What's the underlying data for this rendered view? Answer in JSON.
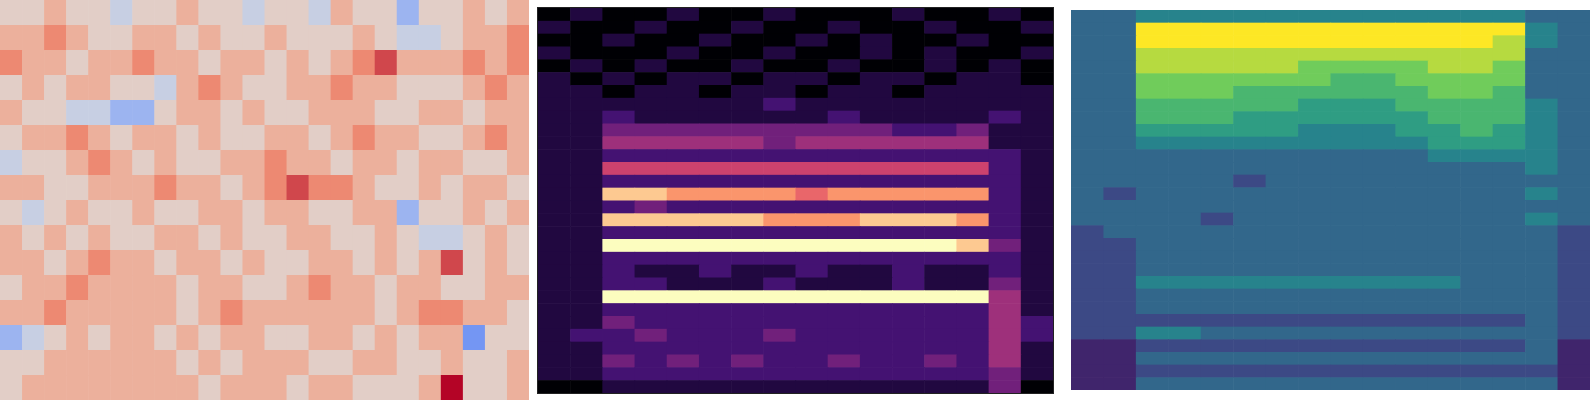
{
  "chart_data": [
    {
      "type": "heatmap",
      "color": "coolwarm",
      "tick_labels": false,
      "xlim": [
        0,
        24
      ],
      "ylim": [
        0,
        16
      ],
      "zlim": [
        0,
        9
      ],
      "cells": [
        [
          5,
          5,
          6,
          5,
          5,
          4,
          5,
          5,
          6,
          5,
          5,
          4,
          5,
          5,
          4,
          6,
          5,
          5,
          3,
          5,
          5,
          6,
          5,
          6
        ],
        [
          6,
          6,
          7,
          6,
          5,
          5,
          6,
          6,
          5,
          6,
          5,
          5,
          6,
          5,
          5,
          5,
          6,
          5,
          4,
          4,
          5,
          6,
          6,
          7
        ],
        [
          7,
          6,
          6,
          5,
          6,
          6,
          7,
          6,
          6,
          5,
          6,
          6,
          5,
          6,
          5,
          6,
          7,
          8,
          6,
          6,
          6,
          7,
          6,
          7
        ],
        [
          5,
          6,
          5,
          6,
          6,
          5,
          5,
          4,
          6,
          7,
          6,
          5,
          5,
          6,
          6,
          7,
          6,
          6,
          5,
          5,
          5,
          6,
          7,
          6
        ],
        [
          6,
          5,
          5,
          4,
          4,
          3,
          3,
          5,
          6,
          6,
          5,
          6,
          5,
          5,
          6,
          6,
          6,
          5,
          5,
          6,
          6,
          5,
          6,
          6
        ],
        [
          5,
          6,
          6,
          7,
          6,
          5,
          6,
          6,
          5,
          6,
          5,
          5,
          6,
          6,
          5,
          6,
          7,
          6,
          6,
          5,
          5,
          6,
          7,
          6
        ],
        [
          4,
          5,
          5,
          6,
          7,
          6,
          5,
          6,
          5,
          5,
          6,
          6,
          7,
          6,
          6,
          5,
          6,
          6,
          5,
          6,
          6,
          5,
          5,
          6
        ],
        [
          6,
          6,
          5,
          5,
          6,
          6,
          6,
          7,
          6,
          6,
          5,
          6,
          7,
          8,
          7,
          7,
          6,
          5,
          5,
          6,
          5,
          6,
          6,
          5
        ],
        [
          5,
          4,
          5,
          6,
          5,
          5,
          6,
          5,
          5,
          6,
          6,
          5,
          6,
          6,
          5,
          5,
          6,
          6,
          3,
          5,
          5,
          6,
          5,
          6
        ],
        [
          6,
          5,
          6,
          5,
          6,
          5,
          5,
          6,
          6,
          5,
          6,
          5,
          5,
          6,
          6,
          5,
          5,
          6,
          5,
          4,
          4,
          5,
          6,
          5
        ],
        [
          6,
          6,
          5,
          6,
          7,
          6,
          6,
          5,
          6,
          6,
          5,
          6,
          5,
          5,
          6,
          6,
          5,
          6,
          5,
          6,
          8,
          5,
          6,
          5
        ],
        [
          5,
          6,
          6,
          7,
          6,
          6,
          6,
          6,
          5,
          6,
          6,
          5,
          5,
          6,
          7,
          6,
          6,
          5,
          6,
          6,
          5,
          5,
          6,
          6
        ],
        [
          6,
          6,
          7,
          6,
          6,
          6,
          6,
          6,
          5,
          6,
          7,
          6,
          6,
          6,
          6,
          6,
          6,
          5,
          6,
          7,
          7,
          6,
          6,
          5
        ],
        [
          3,
          4,
          5,
          6,
          5,
          6,
          6,
          5,
          6,
          5,
          6,
          6,
          5,
          5,
          6,
          6,
          5,
          6,
          5,
          6,
          6,
          2,
          5,
          5
        ],
        [
          5,
          5,
          6,
          6,
          6,
          6,
          6,
          6,
          5,
          6,
          5,
          6,
          6,
          6,
          5,
          5,
          6,
          6,
          5,
          5,
          6,
          5,
          5,
          6
        ],
        [
          5,
          6,
          6,
          6,
          6,
          6,
          6,
          6,
          6,
          5,
          6,
          6,
          6,
          5,
          6,
          6,
          5,
          5,
          5,
          6,
          9,
          5,
          5,
          6
        ]
      ]
    },
    {
      "type": "heatmap",
      "color": "magma",
      "tick_labels": false,
      "xlim": [
        0,
        16
      ],
      "ylim": [
        0,
        30
      ],
      "zlim": [
        0,
        9
      ],
      "cells": [
        [
          0,
          1,
          0,
          0,
          1,
          0,
          0,
          1,
          0,
          0,
          0,
          1,
          0,
          0,
          1,
          0
        ],
        [
          1,
          0,
          0,
          1,
          0,
          0,
          1,
          0,
          0,
          1,
          0,
          0,
          1,
          0,
          0,
          1
        ],
        [
          0,
          0,
          1,
          0,
          0,
          1,
          0,
          0,
          1,
          0,
          1,
          0,
          0,
          1,
          0,
          0
        ],
        [
          1,
          0,
          0,
          0,
          1,
          0,
          0,
          1,
          0,
          0,
          1,
          0,
          1,
          0,
          0,
          1
        ],
        [
          0,
          1,
          0,
          1,
          0,
          0,
          1,
          0,
          0,
          1,
          0,
          0,
          1,
          0,
          1,
          0
        ],
        [
          1,
          0,
          1,
          0,
          1,
          1,
          0,
          1,
          1,
          0,
          1,
          1,
          0,
          1,
          1,
          0
        ],
        [
          1,
          1,
          0,
          1,
          1,
          0,
          1,
          1,
          0,
          1,
          1,
          0,
          1,
          1,
          1,
          1
        ],
        [
          1,
          1,
          1,
          1,
          1,
          1,
          1,
          2,
          1,
          1,
          1,
          1,
          1,
          1,
          1,
          1
        ],
        [
          1,
          1,
          2,
          1,
          1,
          1,
          1,
          1,
          1,
          2,
          1,
          1,
          1,
          1,
          2,
          1
        ],
        [
          1,
          1,
          3,
          3,
          3,
          3,
          3,
          3,
          3,
          3,
          3,
          2,
          2,
          3,
          1,
          1
        ],
        [
          1,
          1,
          4,
          4,
          4,
          4,
          4,
          3,
          4,
          4,
          4,
          4,
          4,
          4,
          1,
          1
        ],
        [
          1,
          1,
          2,
          2,
          2,
          2,
          2,
          2,
          2,
          2,
          2,
          2,
          2,
          2,
          2,
          1
        ],
        [
          1,
          1,
          5,
          5,
          5,
          5,
          5,
          5,
          5,
          5,
          5,
          5,
          5,
          5,
          2,
          1
        ],
        [
          1,
          1,
          2,
          2,
          2,
          2,
          2,
          2,
          2,
          2,
          2,
          2,
          2,
          2,
          2,
          1
        ],
        [
          1,
          1,
          8,
          8,
          7,
          7,
          7,
          7,
          6,
          7,
          7,
          7,
          7,
          7,
          2,
          1
        ],
        [
          1,
          1,
          2,
          3,
          2,
          2,
          2,
          2,
          2,
          2,
          2,
          2,
          2,
          2,
          2,
          1
        ],
        [
          1,
          1,
          8,
          8,
          8,
          8,
          8,
          7,
          7,
          7,
          8,
          8,
          8,
          7,
          2,
          1
        ],
        [
          1,
          1,
          2,
          2,
          2,
          2,
          2,
          2,
          2,
          2,
          2,
          2,
          2,
          2,
          2,
          1
        ],
        [
          1,
          1,
          9,
          9,
          9,
          9,
          9,
          9,
          9,
          9,
          9,
          9,
          9,
          8,
          3,
          1
        ],
        [
          1,
          1,
          2,
          2,
          2,
          2,
          2,
          2,
          2,
          2,
          2,
          2,
          2,
          2,
          2,
          1
        ],
        [
          1,
          1,
          2,
          1,
          1,
          2,
          1,
          1,
          2,
          1,
          1,
          2,
          1,
          1,
          2,
          1
        ],
        [
          1,
          1,
          2,
          2,
          1,
          1,
          1,
          2,
          1,
          1,
          1,
          2,
          1,
          1,
          3,
          1
        ],
        [
          1,
          1,
          9,
          9,
          9,
          9,
          9,
          9,
          9,
          9,
          9,
          9,
          9,
          9,
          4,
          1
        ],
        [
          1,
          1,
          2,
          2,
          2,
          2,
          2,
          2,
          2,
          2,
          2,
          2,
          2,
          2,
          4,
          1
        ],
        [
          1,
          1,
          3,
          2,
          2,
          2,
          2,
          2,
          2,
          2,
          2,
          2,
          2,
          2,
          4,
          2
        ],
        [
          1,
          2,
          2,
          3,
          2,
          2,
          2,
          3,
          2,
          2,
          2,
          2,
          2,
          2,
          4,
          2
        ],
        [
          1,
          1,
          2,
          2,
          2,
          2,
          2,
          2,
          2,
          2,
          2,
          2,
          2,
          2,
          4,
          1
        ],
        [
          1,
          1,
          3,
          2,
          3,
          2,
          3,
          2,
          2,
          3,
          2,
          2,
          3,
          2,
          4,
          1
        ],
        [
          1,
          1,
          2,
          2,
          2,
          2,
          2,
          2,
          2,
          2,
          2,
          2,
          2,
          2,
          3,
          1
        ],
        [
          0,
          0,
          1,
          1,
          1,
          1,
          1,
          1,
          1,
          1,
          1,
          1,
          1,
          1,
          3,
          0
        ]
      ]
    },
    {
      "type": "heatmap",
      "color": "viridis",
      "tick_labels": false,
      "xlim": [
        0,
        16
      ],
      "ylim": [
        0,
        30
      ],
      "zlim": [
        0,
        9
      ],
      "cells": [
        [
          3,
          3,
          4,
          4,
          4,
          4,
          4,
          4,
          4,
          4,
          4,
          4,
          4,
          4,
          3,
          3
        ],
        [
          3,
          3,
          9,
          9,
          9,
          9,
          9,
          9,
          9,
          9,
          9,
          9,
          9,
          9,
          4,
          3
        ],
        [
          3,
          3,
          9,
          9,
          9,
          9,
          9,
          9,
          9,
          9,
          9,
          9,
          9,
          8,
          4,
          3
        ],
        [
          3,
          3,
          8,
          8,
          8,
          8,
          8,
          8,
          8,
          8,
          8,
          8,
          8,
          8,
          3,
          3
        ],
        [
          3,
          3,
          8,
          8,
          8,
          8,
          8,
          7,
          7,
          7,
          7,
          8,
          8,
          7,
          3,
          3
        ],
        [
          3,
          3,
          7,
          7,
          7,
          7,
          7,
          7,
          6,
          6,
          7,
          7,
          7,
          7,
          3,
          3
        ],
        [
          3,
          3,
          7,
          7,
          7,
          6,
          6,
          6,
          6,
          6,
          6,
          7,
          7,
          6,
          3,
          3
        ],
        [
          3,
          3,
          6,
          6,
          6,
          6,
          6,
          5,
          5,
          5,
          6,
          6,
          6,
          6,
          4,
          3
        ],
        [
          3,
          3,
          6,
          6,
          6,
          5,
          5,
          5,
          5,
          5,
          5,
          6,
          6,
          6,
          4,
          3
        ],
        [
          3,
          3,
          5,
          5,
          5,
          5,
          5,
          4,
          4,
          4,
          5,
          5,
          6,
          5,
          4,
          3
        ],
        [
          3,
          3,
          4,
          4,
          4,
          4,
          4,
          4,
          4,
          4,
          4,
          5,
          5,
          5,
          4,
          3
        ],
        [
          3,
          3,
          3,
          3,
          3,
          3,
          3,
          3,
          3,
          3,
          3,
          4,
          4,
          4,
          4,
          3
        ],
        [
          3,
          3,
          3,
          3,
          3,
          3,
          3,
          3,
          3,
          3,
          3,
          3,
          3,
          3,
          4,
          3
        ],
        [
          3,
          3,
          3,
          3,
          3,
          2,
          3,
          3,
          3,
          3,
          3,
          3,
          3,
          3,
          3,
          3
        ],
        [
          3,
          2,
          3,
          3,
          3,
          3,
          3,
          3,
          3,
          3,
          3,
          3,
          3,
          3,
          4,
          3
        ],
        [
          3,
          3,
          3,
          3,
          3,
          3,
          3,
          3,
          3,
          3,
          3,
          3,
          3,
          3,
          3,
          3
        ],
        [
          3,
          3,
          3,
          3,
          2,
          3,
          3,
          3,
          3,
          3,
          3,
          3,
          3,
          3,
          4,
          3
        ],
        [
          2,
          3,
          3,
          3,
          3,
          3,
          3,
          3,
          3,
          3,
          3,
          3,
          3,
          3,
          3,
          2
        ],
        [
          2,
          2,
          3,
          3,
          3,
          3,
          3,
          3,
          3,
          3,
          3,
          3,
          3,
          3,
          3,
          2
        ],
        [
          2,
          2,
          3,
          3,
          3,
          3,
          3,
          3,
          3,
          3,
          3,
          3,
          3,
          3,
          3,
          2
        ],
        [
          2,
          2,
          3,
          3,
          3,
          3,
          3,
          3,
          3,
          3,
          3,
          3,
          3,
          3,
          3,
          2
        ],
        [
          2,
          2,
          4,
          4,
          4,
          4,
          4,
          4,
          4,
          4,
          4,
          4,
          3,
          3,
          3,
          2
        ],
        [
          2,
          2,
          3,
          3,
          3,
          3,
          3,
          3,
          3,
          3,
          3,
          3,
          3,
          3,
          3,
          2
        ],
        [
          2,
          2,
          3,
          3,
          3,
          3,
          3,
          3,
          3,
          3,
          3,
          3,
          3,
          3,
          3,
          2
        ],
        [
          2,
          2,
          2,
          2,
          2,
          2,
          2,
          2,
          2,
          2,
          2,
          2,
          2,
          2,
          3,
          2
        ],
        [
          2,
          2,
          4,
          4,
          3,
          3,
          3,
          3,
          3,
          3,
          3,
          3,
          3,
          3,
          3,
          2
        ],
        [
          1,
          1,
          2,
          2,
          2,
          2,
          2,
          2,
          2,
          2,
          2,
          2,
          2,
          2,
          3,
          1
        ],
        [
          1,
          1,
          3,
          3,
          3,
          3,
          3,
          3,
          3,
          3,
          3,
          3,
          3,
          3,
          3,
          1
        ],
        [
          1,
          1,
          2,
          2,
          2,
          2,
          2,
          2,
          2,
          2,
          2,
          2,
          2,
          2,
          2,
          1
        ],
        [
          1,
          1,
          3,
          3,
          3,
          3,
          3,
          3,
          3,
          3,
          3,
          3,
          3,
          3,
          3,
          1
        ]
      ]
    }
  ]
}
